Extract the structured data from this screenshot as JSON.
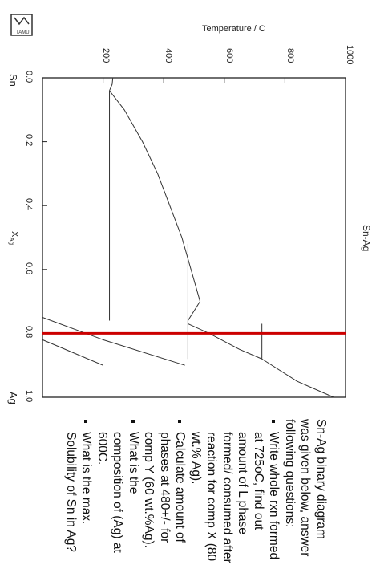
{
  "logo_text": "TAMU",
  "figure": {
    "title": "Sn-Ag",
    "temperature_axis_label": "Temperature / C",
    "composition_axis_label": "X",
    "composition_axis_subscript": "Ag",
    "end_labels": [
      "Sn",
      "Ag"
    ],
    "temperature_ticks": [
      "200",
      "400",
      "600",
      "800",
      "1000"
    ],
    "composition_ticks": [
      "0.0",
      "0.2",
      "0.4",
      "0.6",
      "0.8",
      "1.0"
    ],
    "marker_color": "#cc0000"
  },
  "chart_data": {
    "type": "line",
    "title": "Sn-Ag",
    "xlabel": "X_Ag",
    "ylabel": "Temperature / C",
    "xlim": [
      0,
      1
    ],
    "ylim": [
      0,
      1000
    ],
    "series": [
      {
        "x": [
          0.0,
          0.02,
          0.04
        ],
        "y": [
          232,
          230,
          221
        ]
      },
      {
        "x": [
          0.04,
          0.1,
          0.2,
          0.3,
          0.4,
          0.5,
          0.6,
          0.7,
          0.76
        ],
        "y": [
          221,
          270,
          330,
          380,
          420,
          460,
          490,
          520,
          480
        ]
      },
      {
        "x": [
          0.77,
          0.8,
          0.85,
          0.88
        ],
        "y": [
          480,
          550,
          650,
          724
        ]
      },
      {
        "x": [
          0.88,
          0.95,
          1.0
        ],
        "y": [
          724,
          840,
          961
        ]
      },
      {
        "x": [
          0.04,
          0.76
        ],
        "y": [
          221,
          221
        ]
      },
      {
        "x": [
          0.52,
          0.88
        ],
        "y": [
          480,
          480
        ]
      },
      {
        "x": [
          0.77,
          0.88
        ],
        "y": [
          724,
          724
        ]
      },
      {
        "x": [
          0.75,
          0.82,
          0.9
        ],
        "y": [
          0,
          200,
          470
        ]
      },
      {
        "x": [
          0.76,
          0.88
        ],
        "y": [
          480,
          480
        ]
      },
      {
        "x": [
          0.82,
          0.9
        ],
        "y": [
          0,
          200
        ]
      },
      {
        "x": [
          0.8,
          0.8
        ],
        "y": [
          0,
          1000
        ]
      }
    ]
  },
  "questions": {
    "intro": "Sn-Ag binary diagram was given below, answer following questions;",
    "items": [
      "Write whole rxn formed at 725oC, find out amount of L phase formed/ consumed after reaction for comp X (80 wt.% Ag).",
      "Calculate amount of phases at 480+/- for comp Y (60 wt.%Ag).",
      "What is the composition of (Ag) at 600C.",
      "What is the max. Solubility of Sn in Ag?"
    ]
  }
}
